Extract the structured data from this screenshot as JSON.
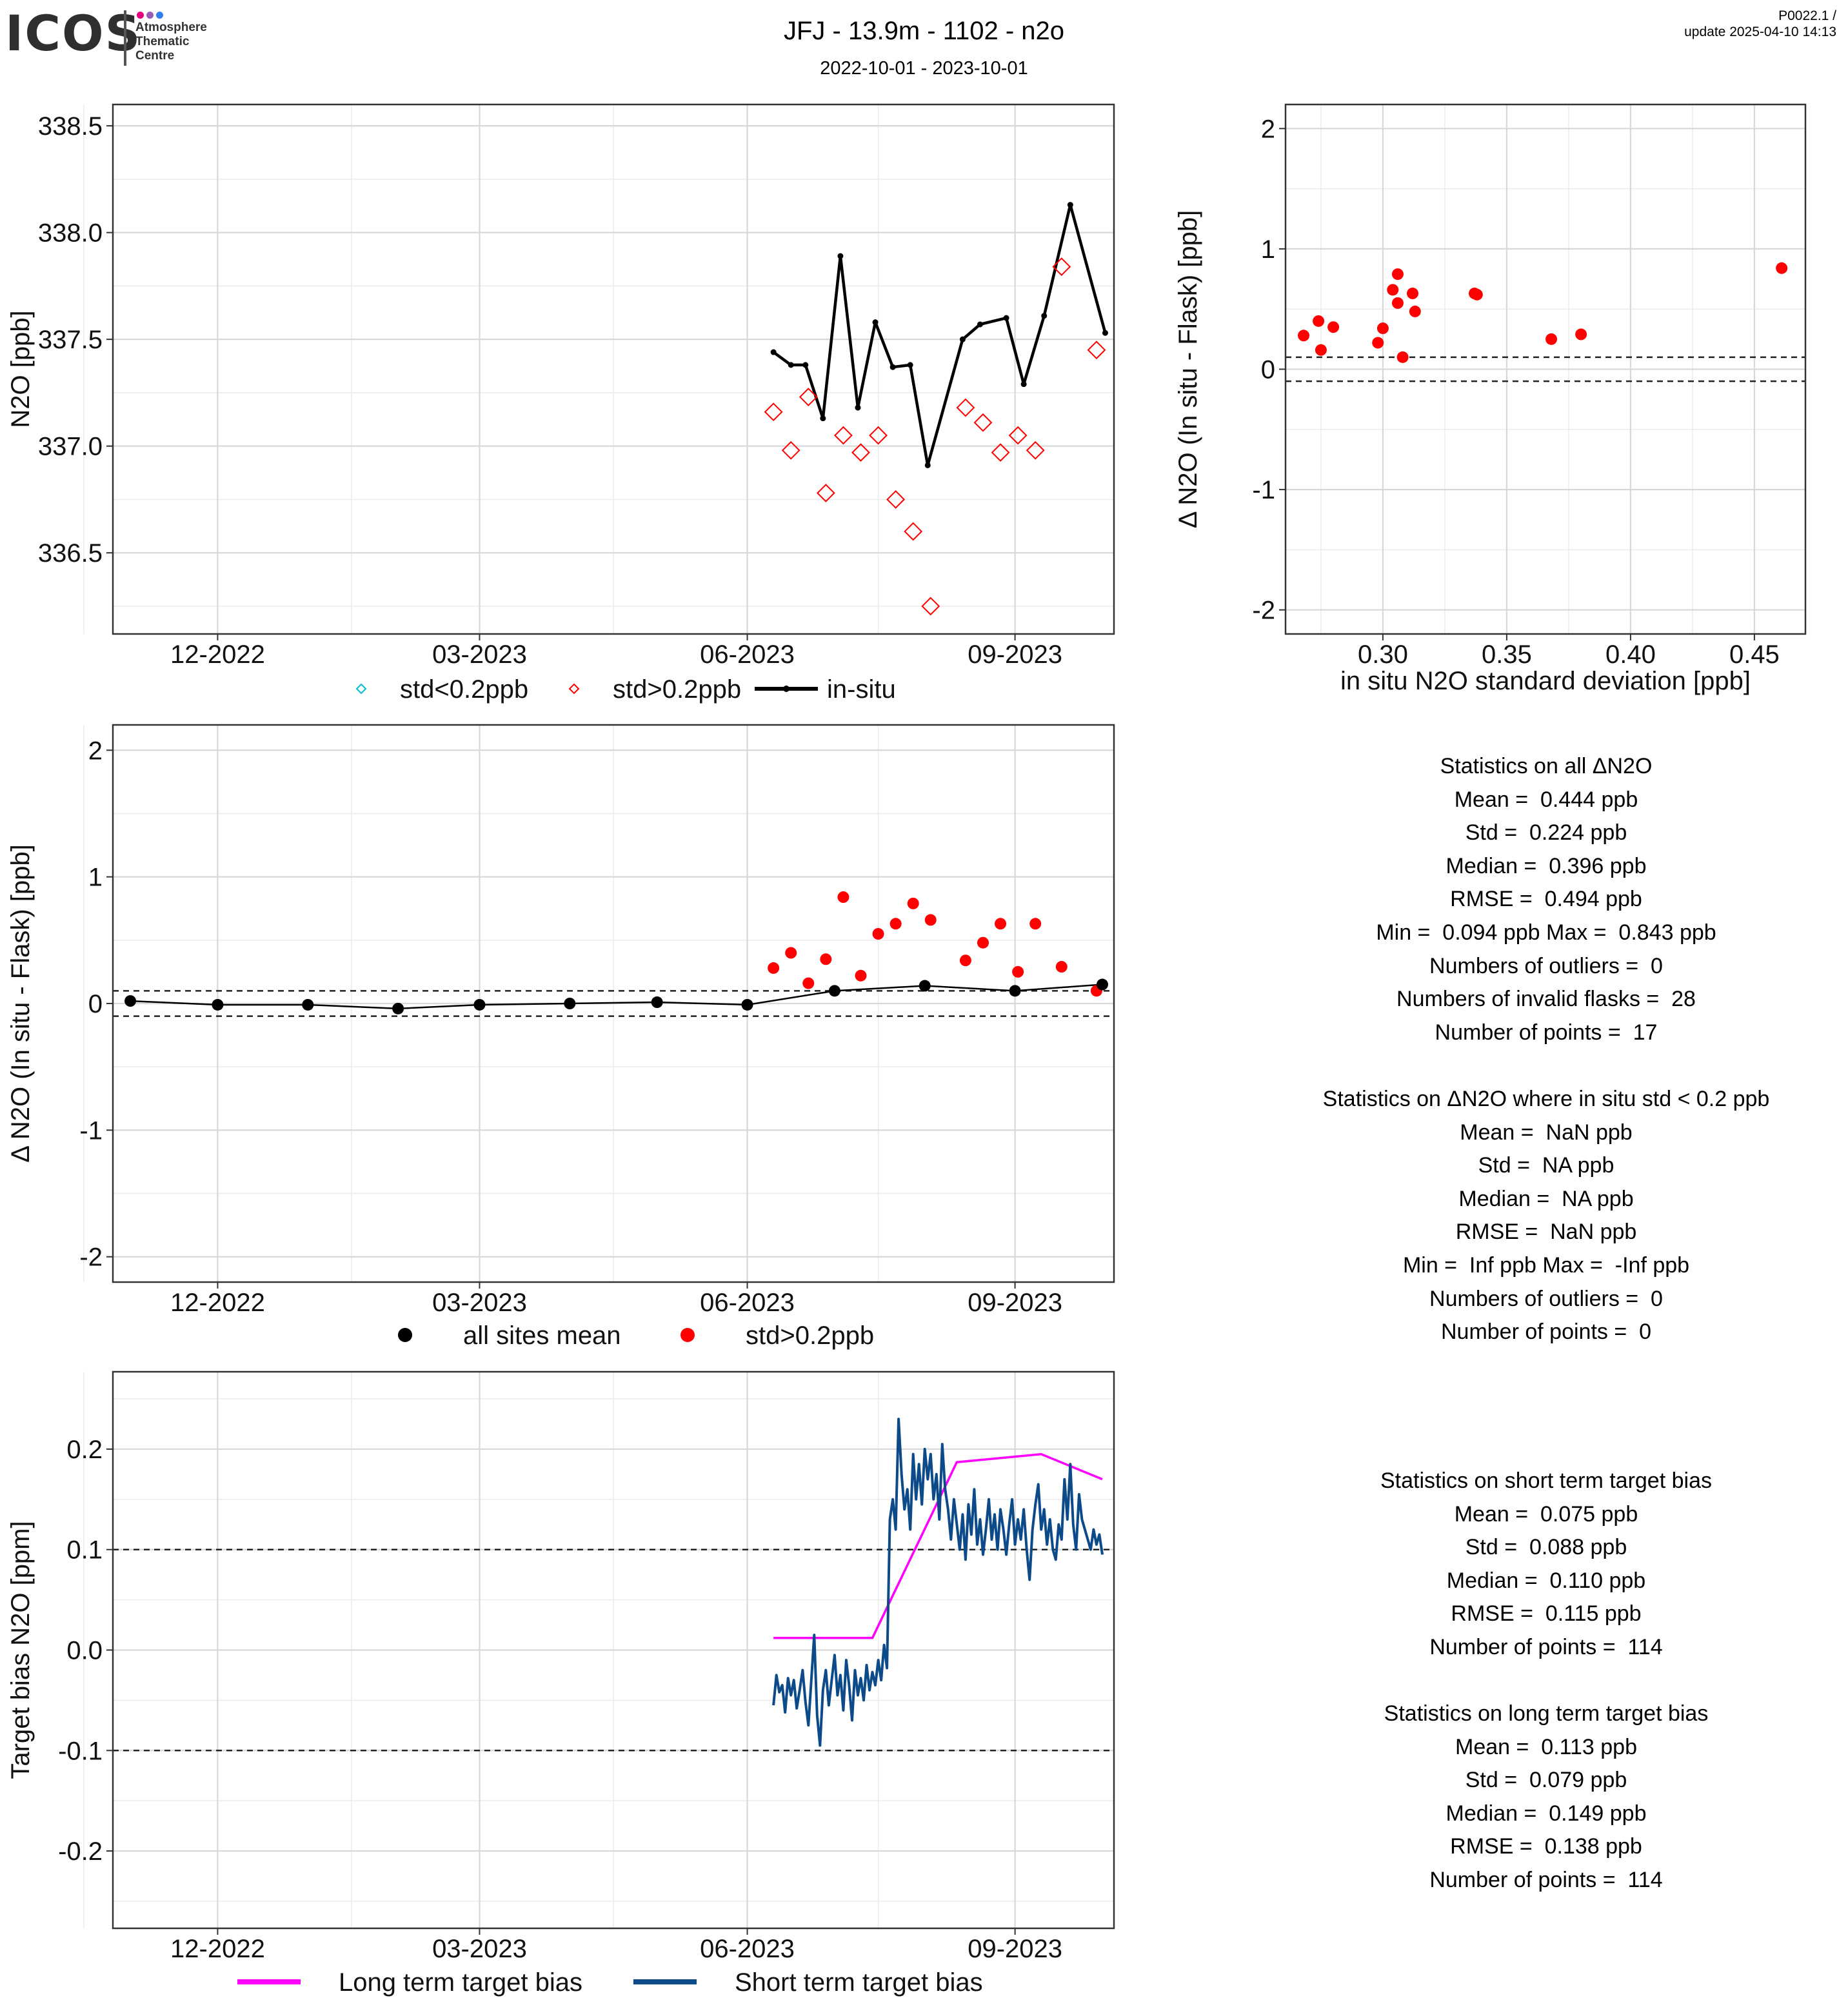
{
  "header": {
    "logo": "ICOS",
    "logo_sub": [
      "Atmosphere",
      "Thematic",
      "Centre"
    ],
    "title": "JFJ - 13.9m - 1102 - n2o",
    "subtitle": "2022-10-01 - 2023-10-01",
    "product_id": "P0022.1 /",
    "update": "update  2025-04-10 14:13"
  },
  "colors": {
    "red": "#ff0000",
    "cyan": "#00bcd4",
    "black": "#000000",
    "magenta": "#ff00ff",
    "navy": "#0c4a8a",
    "grid": "#d8d8d8"
  },
  "chart_data": [
    {
      "id": "n2o_timeseries",
      "type": "line",
      "ylabel": "N2O [ppb]",
      "ylim": [
        336.12,
        338.6
      ],
      "yticks": [
        "338.5",
        "338.0",
        "337.5",
        "337.0",
        "336.5"
      ],
      "xticks": [
        "12-2022",
        "03-2023",
        "06-2023",
        "09-2023"
      ],
      "xlim": [
        "2022-10-26",
        "2023-10-05"
      ],
      "legend": [
        {
          "label": "std<0.2ppb",
          "marker": "diamond",
          "color": "#00bcd4"
        },
        {
          "label": "std>0.2ppb",
          "marker": "diamond",
          "color": "#ff0000"
        },
        {
          "label": "in-situ",
          "marker": "line",
          "color": "#000000"
        }
      ],
      "series": [
        {
          "name": "in-situ",
          "points": [
            [
              "2023-06-10",
              337.44
            ],
            [
              "2023-06-16",
              337.38
            ],
            [
              "2023-06-21",
              337.38
            ],
            [
              "2023-06-27",
              337.13
            ],
            [
              "2023-07-03",
              337.89
            ],
            [
              "2023-07-09",
              337.18
            ],
            [
              "2023-07-15",
              337.58
            ],
            [
              "2023-07-21",
              337.37
            ],
            [
              "2023-07-27",
              337.38
            ],
            [
              "2023-08-02",
              336.91
            ],
            [
              "2023-08-14",
              337.5
            ],
            [
              "2023-08-20",
              337.57
            ],
            [
              "2023-08-29",
              337.6
            ],
            [
              "2023-09-04",
              337.29
            ],
            [
              "2023-09-11",
              337.61
            ],
            [
              "2023-09-20",
              338.13
            ],
            [
              "2023-10-02",
              337.53
            ]
          ]
        },
        {
          "name": "std>0.2ppb",
          "points": [
            [
              "2023-06-10",
              337.16
            ],
            [
              "2023-06-16",
              336.98
            ],
            [
              "2023-06-22",
              337.23
            ],
            [
              "2023-06-28",
              336.78
            ],
            [
              "2023-07-04",
              337.05
            ],
            [
              "2023-07-10",
              336.97
            ],
            [
              "2023-07-16",
              337.05
            ],
            [
              "2023-07-22",
              336.75
            ],
            [
              "2023-07-28",
              336.6
            ],
            [
              "2023-08-03",
              336.25
            ],
            [
              "2023-08-15",
              337.18
            ],
            [
              "2023-08-21",
              337.11
            ],
            [
              "2023-08-27",
              336.97
            ],
            [
              "2023-09-02",
              337.05
            ],
            [
              "2023-09-08",
              336.98
            ],
            [
              "2023-09-17",
              337.84
            ],
            [
              "2023-09-29",
              337.45
            ]
          ]
        }
      ]
    },
    {
      "id": "delta_vs_std",
      "type": "scatter",
      "xlabel": "in situ N2O standard deviation [ppb]",
      "ylabel": "Δ N2O (In situ - Flask) [ppb]",
      "xlim": [
        0.2607,
        0.4706
      ],
      "ylim": [
        -2.2,
        2.2
      ],
      "xticks": [
        "0.30",
        "0.35",
        "0.40",
        "0.45"
      ],
      "yticks": [
        "2",
        "1",
        "0",
        "-1",
        "-2"
      ],
      "hlines": [
        0.1,
        -0.1
      ],
      "points": [
        [
          0.268,
          0.28
        ],
        [
          0.274,
          0.4
        ],
        [
          0.275,
          0.16
        ],
        [
          0.28,
          0.35
        ],
        [
          0.298,
          0.22
        ],
        [
          0.3,
          0.34
        ],
        [
          0.304,
          0.66
        ],
        [
          0.306,
          0.55
        ],
        [
          0.306,
          0.79
        ],
        [
          0.308,
          0.1
        ],
        [
          0.312,
          0.63
        ],
        [
          0.313,
          0.48
        ],
        [
          0.337,
          0.63
        ],
        [
          0.338,
          0.62
        ],
        [
          0.368,
          0.25
        ],
        [
          0.38,
          0.29
        ],
        [
          0.461,
          0.84
        ]
      ]
    },
    {
      "id": "delta_timeseries",
      "type": "scatter",
      "ylabel": "Δ N2O (In situ - Flask) [ppb]",
      "ylim": [
        -2.2,
        2.2
      ],
      "yticks": [
        "2",
        "1",
        "0",
        "-1",
        "-2"
      ],
      "xticks": [
        "12-2022",
        "03-2023",
        "06-2023",
        "09-2023"
      ],
      "xlim": [
        "2022-10-26",
        "2023-10-05"
      ],
      "hlines": [
        0.1,
        -0.1
      ],
      "legend": [
        {
          "label": "all sites mean",
          "marker": "dot",
          "color": "#000000"
        },
        {
          "label": "std>0.2ppb",
          "marker": "dot",
          "color": "#ff0000"
        }
      ],
      "series": [
        {
          "name": "all sites mean",
          "points": [
            [
              "2022-11-01",
              0.02
            ],
            [
              "2022-12-01",
              -0.01
            ],
            [
              "2023-01-01",
              -0.01
            ],
            [
              "2023-02-01",
              -0.04
            ],
            [
              "2023-03-01",
              -0.01
            ],
            [
              "2023-04-01",
              0.0
            ],
            [
              "2023-05-01",
              0.01
            ],
            [
              "2023-06-01",
              -0.01
            ],
            [
              "2023-07-01",
              0.1
            ],
            [
              "2023-08-01",
              0.14
            ],
            [
              "2023-09-01",
              0.1
            ],
            [
              "2023-10-01",
              0.15
            ]
          ]
        },
        {
          "name": "std>0.2ppb",
          "points": [
            [
              "2023-06-10",
              0.28
            ],
            [
              "2023-06-16",
              0.4
            ],
            [
              "2023-06-22",
              0.16
            ],
            [
              "2023-06-28",
              0.35
            ],
            [
              "2023-07-04",
              0.84
            ],
            [
              "2023-07-10",
              0.22
            ],
            [
              "2023-07-16",
              0.55
            ],
            [
              "2023-07-22",
              0.63
            ],
            [
              "2023-07-28",
              0.79
            ],
            [
              "2023-08-03",
              0.66
            ],
            [
              "2023-08-15",
              0.34
            ],
            [
              "2023-08-21",
              0.48
            ],
            [
              "2023-08-27",
              0.63
            ],
            [
              "2023-09-02",
              0.25
            ],
            [
              "2023-09-08",
              0.63
            ],
            [
              "2023-09-17",
              0.29
            ],
            [
              "2023-09-29",
              0.1
            ]
          ]
        }
      ]
    },
    {
      "id": "target_bias",
      "type": "line",
      "ylabel": "Target bias N2O [ppm]",
      "ylim": [
        -0.277,
        0.277
      ],
      "yticks": [
        "0.2",
        "0.1",
        "0.0",
        "-0.1",
        "-0.2"
      ],
      "xticks": [
        "12-2022",
        "03-2023",
        "06-2023",
        "09-2023"
      ],
      "xlim": [
        "2022-10-26",
        "2023-10-05"
      ],
      "hlines": [
        0.1,
        -0.1
      ],
      "legend": [
        {
          "label": "Long term target bias",
          "color": "#ff00ff"
        },
        {
          "label": "Short term target bias",
          "color": "#0c4a8a"
        }
      ],
      "series": [
        {
          "name": "Long term target bias",
          "points": [
            [
              "2023-06-10",
              0.012
            ],
            [
              "2023-07-14",
              0.012
            ],
            [
              "2023-08-12",
              0.187
            ],
            [
              "2023-09-10",
              0.195
            ],
            [
              "2023-10-01",
              0.17
            ]
          ]
        },
        {
          "name": "Short term target bias",
          "start": "2023-06-10",
          "end": "2023-10-01",
          "values": [
            -0.055,
            -0.025,
            -0.042,
            -0.035,
            -0.062,
            -0.028,
            -0.045,
            -0.03,
            -0.058,
            -0.04,
            -0.02,
            -0.052,
            -0.075,
            -0.03,
            0.015,
            -0.065,
            -0.095,
            -0.04,
            -0.02,
            -0.055,
            -0.03,
            -0.005,
            -0.045,
            -0.025,
            -0.06,
            -0.01,
            -0.035,
            -0.07,
            -0.02,
            -0.045,
            -0.028,
            -0.05,
            -0.015,
            -0.04,
            -0.022,
            -0.035,
            -0.01,
            -0.03,
            0.005,
            -0.018,
            0.13,
            0.15,
            0.12,
            0.23,
            0.175,
            0.14,
            0.16,
            0.12,
            0.195,
            0.15,
            0.185,
            0.145,
            0.2,
            0.17,
            0.195,
            0.15,
            0.175,
            0.13,
            0.205,
            0.16,
            0.14,
            0.11,
            0.15,
            0.125,
            0.1,
            0.135,
            0.09,
            0.145,
            0.115,
            0.16,
            0.105,
            0.13,
            0.095,
            0.12,
            0.15,
            0.11,
            0.135,
            0.1,
            0.14,
            0.12,
            0.095,
            0.125,
            0.15,
            0.105,
            0.13,
            0.11,
            0.14,
            0.1,
            0.07,
            0.12,
            0.145,
            0.165,
            0.12,
            0.14,
            0.105,
            0.13,
            0.1,
            0.09,
            0.125,
            0.11,
            0.17,
            0.13,
            0.185,
            0.125,
            0.1,
            0.155,
            0.13,
            0.12,
            0.11,
            0.1,
            0.12,
            0.105,
            0.115,
            0.095
          ]
        }
      ]
    }
  ],
  "stats_flask": {
    "all": [
      "Statistics on all ΔN2O",
      "Mean =  0.444 ppb",
      "Std =  0.224 ppb",
      "Median =  0.396 ppb",
      "RMSE =  0.494 ppb",
      "Min =  0.094 ppb Max =  0.843 ppb",
      "Numbers of outliers =  0",
      "Numbers of invalid flasks =  28",
      "Number of points =  17"
    ],
    "low_std": [
      "Statistics on ΔN2O where in situ std < 0.2 ppb",
      "Mean =  NaN ppb",
      "Std =  NA ppb",
      "Median =  NA ppb",
      "RMSE =  NaN ppb",
      "Min =  Inf ppb Max =  -Inf ppb",
      "Numbers of outliers =  0",
      "Number of points =  0"
    ]
  },
  "stats_target": {
    "short": [
      "Statistics on short term target bias",
      "Mean =  0.075 ppb",
      "Std =  0.088 ppb",
      "Median =  0.110 ppb",
      "RMSE =  0.115 ppb",
      "Number of points =  114"
    ],
    "long": [
      "Statistics on long term target bias",
      "Mean =  0.113 ppb",
      "Std =  0.079 ppb",
      "Median =  0.149 ppb",
      "RMSE =  0.138 ppb",
      "Number of points =  114"
    ]
  }
}
